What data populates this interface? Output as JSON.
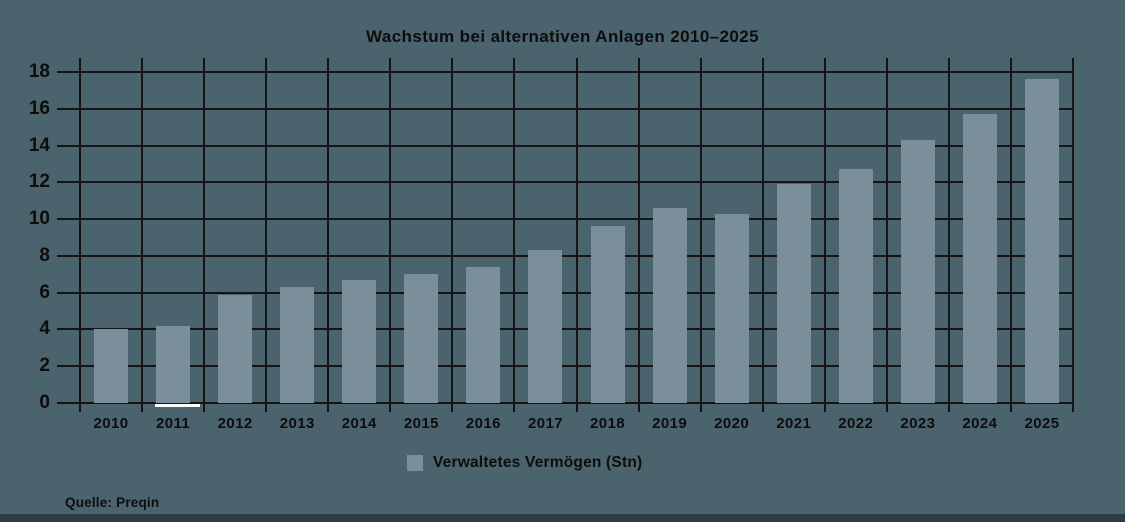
{
  "title": "Wachstum bei alternativen Anlagen 2010–2025",
  "source": "Quelle: Preqin",
  "legend": {
    "label": "Verwaltetes Vermögen (Stn)"
  },
  "colors": {
    "background": "#4b636c",
    "bar": "#7b8f9b",
    "grid": "#141414",
    "text": "#0d0d0d",
    "highlight_underline": "#ffffff",
    "bottom_strip": "#2e3b47",
    "legend_swatch": "#7b8f9b"
  },
  "chart_data": {
    "type": "bar",
    "title": "Wachstum bei alternativen Anlagen 2010–2025",
    "categories": [
      "2010",
      "2011",
      "2012",
      "2013",
      "2014",
      "2015",
      "2016",
      "2017",
      "2018",
      "2019",
      "2020",
      "2021",
      "2022",
      "2023",
      "2024",
      "2025"
    ],
    "values": [
      4.0,
      4.2,
      5.9,
      6.3,
      6.7,
      7.0,
      7.4,
      8.3,
      9.6,
      10.6,
      10.3,
      11.9,
      12.7,
      14.3,
      15.7,
      17.6
    ],
    "series_name": "Verwaltetes Vermögen (Stn)",
    "xlabel": "",
    "ylabel": "",
    "ylim": [
      0,
      18
    ],
    "yticks": [
      0,
      2,
      4,
      6,
      8,
      10,
      12,
      14,
      16,
      18
    ],
    "grid": true,
    "legend_position": "bottom",
    "highlighted_category": "2011",
    "source": "Quelle: Preqin"
  }
}
